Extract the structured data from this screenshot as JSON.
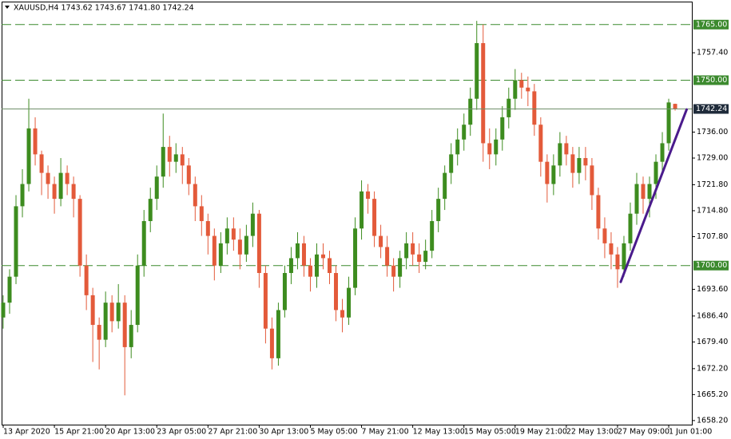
{
  "chart_data": {
    "type": "candlestick",
    "title": "XAUUSD,H4  1743.62 1743.67 1741.80 1742.24",
    "up_color": "#3d8c1f",
    "down_color": "#e35a3a",
    "categories": [
      "13 Apr 2020",
      null,
      null,
      null,
      null,
      null,
      null,
      null,
      "15 Apr 21:00",
      null,
      null,
      null,
      null,
      null,
      null,
      null,
      "20 Apr 13:00",
      null,
      null,
      null,
      null,
      null,
      null,
      null,
      "23 Apr 05:00",
      null,
      null,
      null,
      null,
      null,
      null,
      null,
      "27 Apr 21:00",
      null,
      null,
      null,
      null,
      null,
      null,
      null,
      "30 Apr 13:00",
      null,
      null,
      null,
      null,
      null,
      null,
      null,
      "5 May 05:00",
      null,
      null,
      null,
      null,
      null,
      null,
      null,
      "7 May 21:00",
      null,
      null,
      null,
      null,
      null,
      null,
      null,
      "12 May 13:00",
      null,
      null,
      null,
      null,
      null,
      null,
      null,
      "15 May 05:00",
      null,
      null,
      null,
      null,
      null,
      null,
      null,
      "19 May 21:00",
      null,
      null,
      null,
      null,
      null,
      null,
      null,
      "22 May 13:00",
      null,
      null,
      null,
      null,
      null,
      null,
      null,
      "27 May 09:00",
      null,
      null,
      null,
      null,
      null,
      null,
      null,
      "1 Jun 01:00",
      null
    ],
    "open": [
      1686,
      1690,
      1697,
      1716,
      1722,
      1737,
      1730,
      1725,
      1722,
      1718,
      1725,
      1722,
      1718,
      1700,
      1692,
      1684,
      1680,
      1690,
      1685,
      1690,
      1678,
      1684,
      1700,
      1712,
      1718,
      1724,
      1732,
      1728,
      1730,
      1727,
      1722,
      1716,
      1712,
      1708,
      1700,
      1706,
      1710,
      1707,
      1703,
      1708,
      1714,
      1698,
      1683,
      1675,
      1688,
      1698,
      1702,
      1706,
      1700,
      1697,
      1703,
      1702,
      1698,
      1688,
      1686,
      1694,
      1710,
      1720,
      1718,
      1708,
      1705,
      1700,
      1697,
      1702,
      1706,
      1703,
      1701,
      1704,
      1712,
      1718,
      1725,
      1730,
      1734,
      1738,
      1745,
      1760,
      1733,
      1730,
      1734,
      1740,
      1745,
      1750,
      1748,
      1747,
      1738,
      1728,
      1722,
      1727,
      1733,
      1730,
      1725,
      1729,
      1727,
      1719,
      1710,
      1706,
      1703,
      1699,
      1706,
      1714,
      1722,
      1718,
      1722,
      1728,
      1733,
      1743.62
    ],
    "high": [
      1692,
      1699,
      1719,
      1726,
      1745,
      1740,
      1731,
      1727,
      1724,
      1729,
      1727,
      1724,
      1719,
      1703,
      1694,
      1686,
      1693,
      1692,
      1695,
      1692,
      1688,
      1703,
      1715,
      1721,
      1727,
      1741,
      1735,
      1733,
      1732,
      1729,
      1724,
      1719,
      1714,
      1710,
      1709,
      1713,
      1713,
      1710,
      1711,
      1717,
      1715,
      1700,
      1686,
      1690,
      1700,
      1705,
      1709,
      1708,
      1702,
      1706,
      1706,
      1704,
      1700,
      1691,
      1697,
      1713,
      1723,
      1722,
      1720,
      1711,
      1708,
      1702,
      1704,
      1709,
      1709,
      1706,
      1707,
      1715,
      1721,
      1727,
      1733,
      1737,
      1741,
      1748,
      1766,
      1765,
      1737,
      1737,
      1743,
      1748,
      1753,
      1752,
      1751,
      1749,
      1740,
      1730,
      1730,
      1736,
      1735,
      1732,
      1732,
      1732,
      1729,
      1721,
      1713,
      1709,
      1705,
      1708,
      1717,
      1725,
      1724,
      1724,
      1730,
      1736,
      1745,
      1743.67
    ],
    "low": [
      1683,
      1687,
      1695,
      1713,
      1720,
      1727,
      1719,
      1718,
      1714,
      1716,
      1719,
      1713,
      1697,
      1688,
      1674,
      1672,
      1678,
      1682,
      1683,
      1665,
      1675,
      1682,
      1697,
      1709,
      1715,
      1721,
      1724,
      1725,
      1722,
      1719,
      1712,
      1708,
      1703,
      1696,
      1698,
      1703,
      1704,
      1699,
      1701,
      1705,
      1694,
      1679,
      1672,
      1673,
      1686,
      1695,
      1699,
      1697,
      1693,
      1694,
      1699,
      1695,
      1685,
      1682,
      1684,
      1692,
      1707,
      1714,
      1705,
      1702,
      1697,
      1693,
      1694,
      1699,
      1700,
      1698,
      1699,
      1702,
      1709,
      1715,
      1722,
      1727,
      1731,
      1735,
      1742,
      1728,
      1726,
      1727,
      1731,
      1737,
      1742,
      1745,
      1743,
      1735,
      1724,
      1717,
      1719,
      1724,
      1727,
      1721,
      1722,
      1723,
      1715,
      1707,
      1702,
      1699,
      1694,
      1697,
      1704,
      1711,
      1714,
      1713,
      1718,
      1725,
      1731,
      1741.8
    ],
    "close": [
      1690,
      1697,
      1716,
      1722,
      1737,
      1730,
      1725,
      1722,
      1718,
      1725,
      1722,
      1718,
      1700,
      1692,
      1684,
      1680,
      1690,
      1685,
      1690,
      1678,
      1684,
      1700,
      1712,
      1718,
      1724,
      1732,
      1728,
      1730,
      1727,
      1722,
      1716,
      1712,
      1708,
      1700,
      1706,
      1710,
      1707,
      1703,
      1708,
      1714,
      1698,
      1683,
      1675,
      1688,
      1698,
      1702,
      1706,
      1700,
      1697,
      1703,
      1702,
      1698,
      1688,
      1686,
      1694,
      1710,
      1720,
      1718,
      1708,
      1705,
      1700,
      1697,
      1702,
      1706,
      1703,
      1701,
      1704,
      1712,
      1718,
      1725,
      1730,
      1734,
      1738,
      1745,
      1760,
      1733,
      1730,
      1734,
      1740,
      1745,
      1750,
      1748,
      1747,
      1738,
      1728,
      1722,
      1727,
      1733,
      1730,
      1725,
      1729,
      1727,
      1719,
      1710,
      1706,
      1703,
      1699,
      1706,
      1714,
      1722,
      1718,
      1722,
      1728,
      1733,
      1744,
      1742.24
    ],
    "ylim": [
      1657.1,
      1771.2
    ],
    "yticks": [
      {
        "value": 1757.4,
        "label": "1757.40"
      },
      {
        "value": 1736,
        "label": "1736.00"
      },
      {
        "value": 1729,
        "label": "1729.00"
      },
      {
        "value": 1721.8,
        "label": "1721.80"
      },
      {
        "value": 1714.8,
        "label": "1714.80"
      },
      {
        "value": 1707.8,
        "label": "1707.80"
      },
      {
        "value": 1693.6,
        "label": "1693.60"
      },
      {
        "value": 1686.4,
        "label": "1686.40"
      },
      {
        "value": 1679.4,
        "label": "1679.40"
      },
      {
        "value": 1672.2,
        "label": "1672.20"
      },
      {
        "value": 1665.2,
        "label": "1665.20"
      },
      {
        "value": 1658.2,
        "label": "1658.20"
      }
    ],
    "levels": [
      {
        "value": 1765,
        "label": "1765.00"
      },
      {
        "value": 1750,
        "label": "1750.00"
      },
      {
        "value": 1700,
        "label": "1700.00"
      }
    ],
    "level_color": "#3c8a2e",
    "price_line": {
      "value": 1742.24,
      "color": "#6f8f6a",
      "label_color": "#1f2b3a"
    },
    "trendline": {
      "x": [
        96.5,
        106.8
      ],
      "y": [
        1695.6,
        1742.1
      ],
      "color": "#4a1b8c"
    }
  }
}
